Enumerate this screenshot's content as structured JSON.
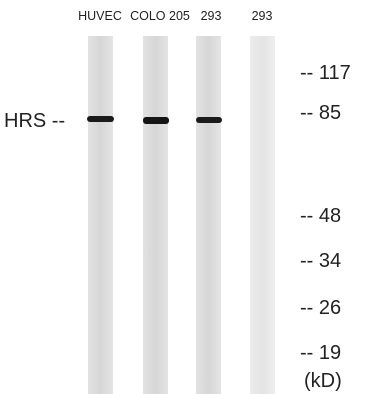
{
  "lanes": [
    "HUVEC",
    "COLO 205",
    "293",
    "293"
  ],
  "protein_label": "HRS --",
  "markers": [
    "-- 117",
    "-- 85",
    "-- 48",
    "-- 34",
    "-- 26",
    "-- 19"
  ],
  "unit": "(kD)"
}
